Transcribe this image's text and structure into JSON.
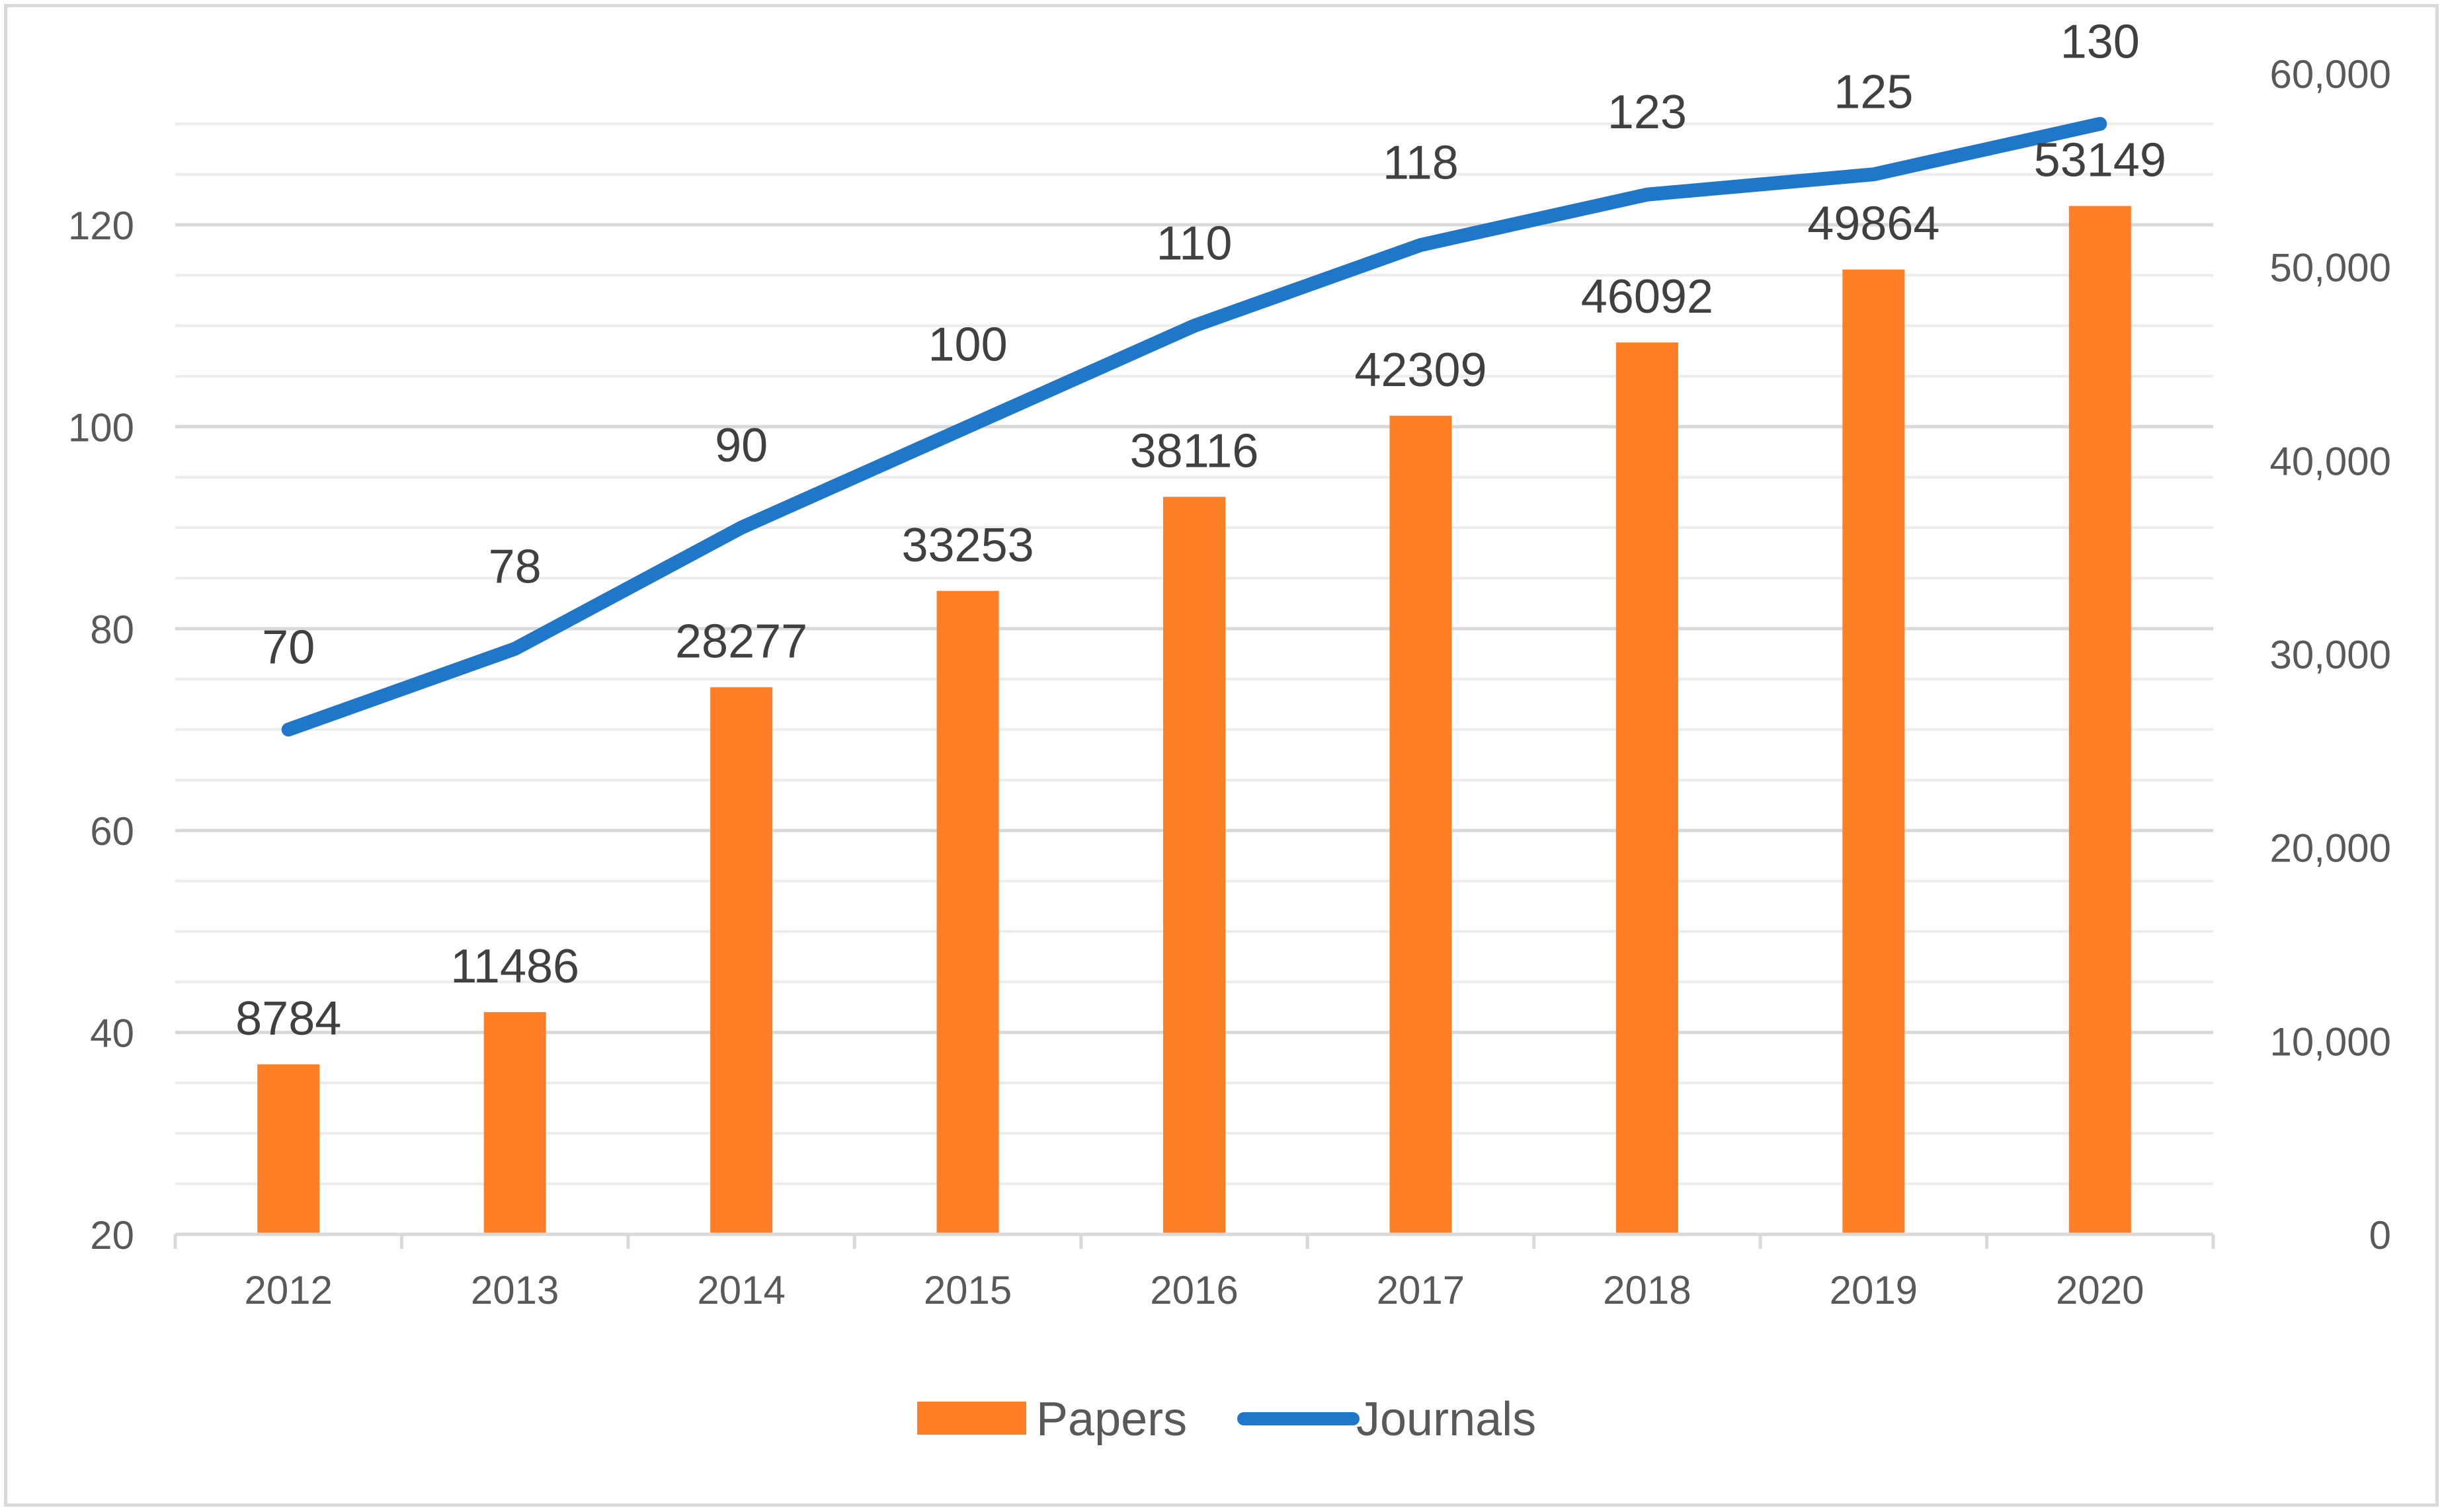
{
  "chart_data": {
    "type": "bar",
    "title": "",
    "xlabel": "",
    "ylabel": "",
    "categories": [
      "2012",
      "2013",
      "2014",
      "2015",
      "2016",
      "2017",
      "2018",
      "2019",
      "2020"
    ],
    "series": [
      {
        "name": "Papers",
        "type": "bar",
        "axis": "secondary",
        "color": "#ff7f27",
        "values": [
          8784,
          11486,
          28277,
          33253,
          38116,
          42309,
          46092,
          49864,
          53149
        ],
        "labels": [
          "8784",
          "11486",
          "28277",
          "33253",
          "38116",
          "42309",
          "46092",
          "49864",
          "53149"
        ]
      },
      {
        "name": "Journals",
        "type": "line",
        "axis": "primary",
        "color": "#1f77c9",
        "values": [
          70,
          78,
          90,
          100,
          110,
          118,
          123,
          125,
          130
        ],
        "labels": [
          "70",
          "78",
          "90",
          "100",
          "110",
          "118",
          "123",
          "125",
          "130"
        ]
      }
    ],
    "y_left": {
      "range": [
        20,
        135
      ],
      "ticks": [
        20,
        40,
        60,
        80,
        100,
        120
      ],
      "tick_labels": [
        "20",
        "40",
        "60",
        "80",
        "100",
        "120"
      ]
    },
    "y_right": {
      "range": [
        0,
        60000
      ],
      "ticks": [
        0,
        10000,
        20000,
        30000,
        40000,
        50000,
        60000
      ],
      "tick_labels": [
        "0",
        "10,000",
        "20,000",
        "30,000",
        "40,000",
        "50,000",
        "60,000"
      ]
    },
    "gridlines": true,
    "legend": {
      "position": "bottom",
      "entries": [
        "Papers",
        "Journals"
      ]
    }
  }
}
